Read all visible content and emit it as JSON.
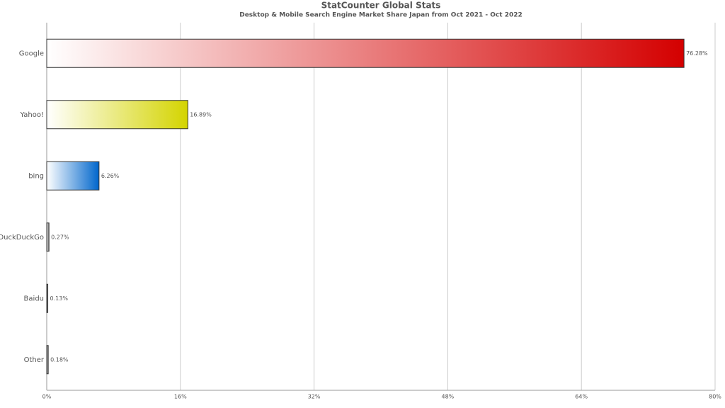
{
  "chart_data": {
    "type": "hbar",
    "title": "StatCounter Global Stats",
    "subtitle": "Desktop & Mobile Search Engine Market Share Japan from Oct 2021 - Oct 2022",
    "categories": [
      "Google",
      "Yahoo!",
      "bing",
      "DuckDuckGo",
      "Baidu",
      "Other"
    ],
    "values": [
      76.28,
      16.89,
      6.26,
      0.27,
      0.13,
      0.18
    ],
    "value_labels": [
      "76.28%",
      "16.89%",
      "6.26%",
      "0.27%",
      "0.13%",
      "0.18%"
    ],
    "colors": [
      "#d40000",
      "#d4d400",
      "#0066cc",
      "#666666",
      "#333333",
      "#555555"
    ],
    "xlim": [
      0,
      80
    ],
    "xticks": [
      {
        "value": 0,
        "label": "0%"
      },
      {
        "value": 16,
        "label": "16%"
      },
      {
        "value": 32,
        "label": "32%"
      },
      {
        "value": 48,
        "label": "48%"
      },
      {
        "value": 64,
        "label": "64%"
      },
      {
        "value": 80,
        "label": "80%"
      }
    ],
    "grid": true
  }
}
